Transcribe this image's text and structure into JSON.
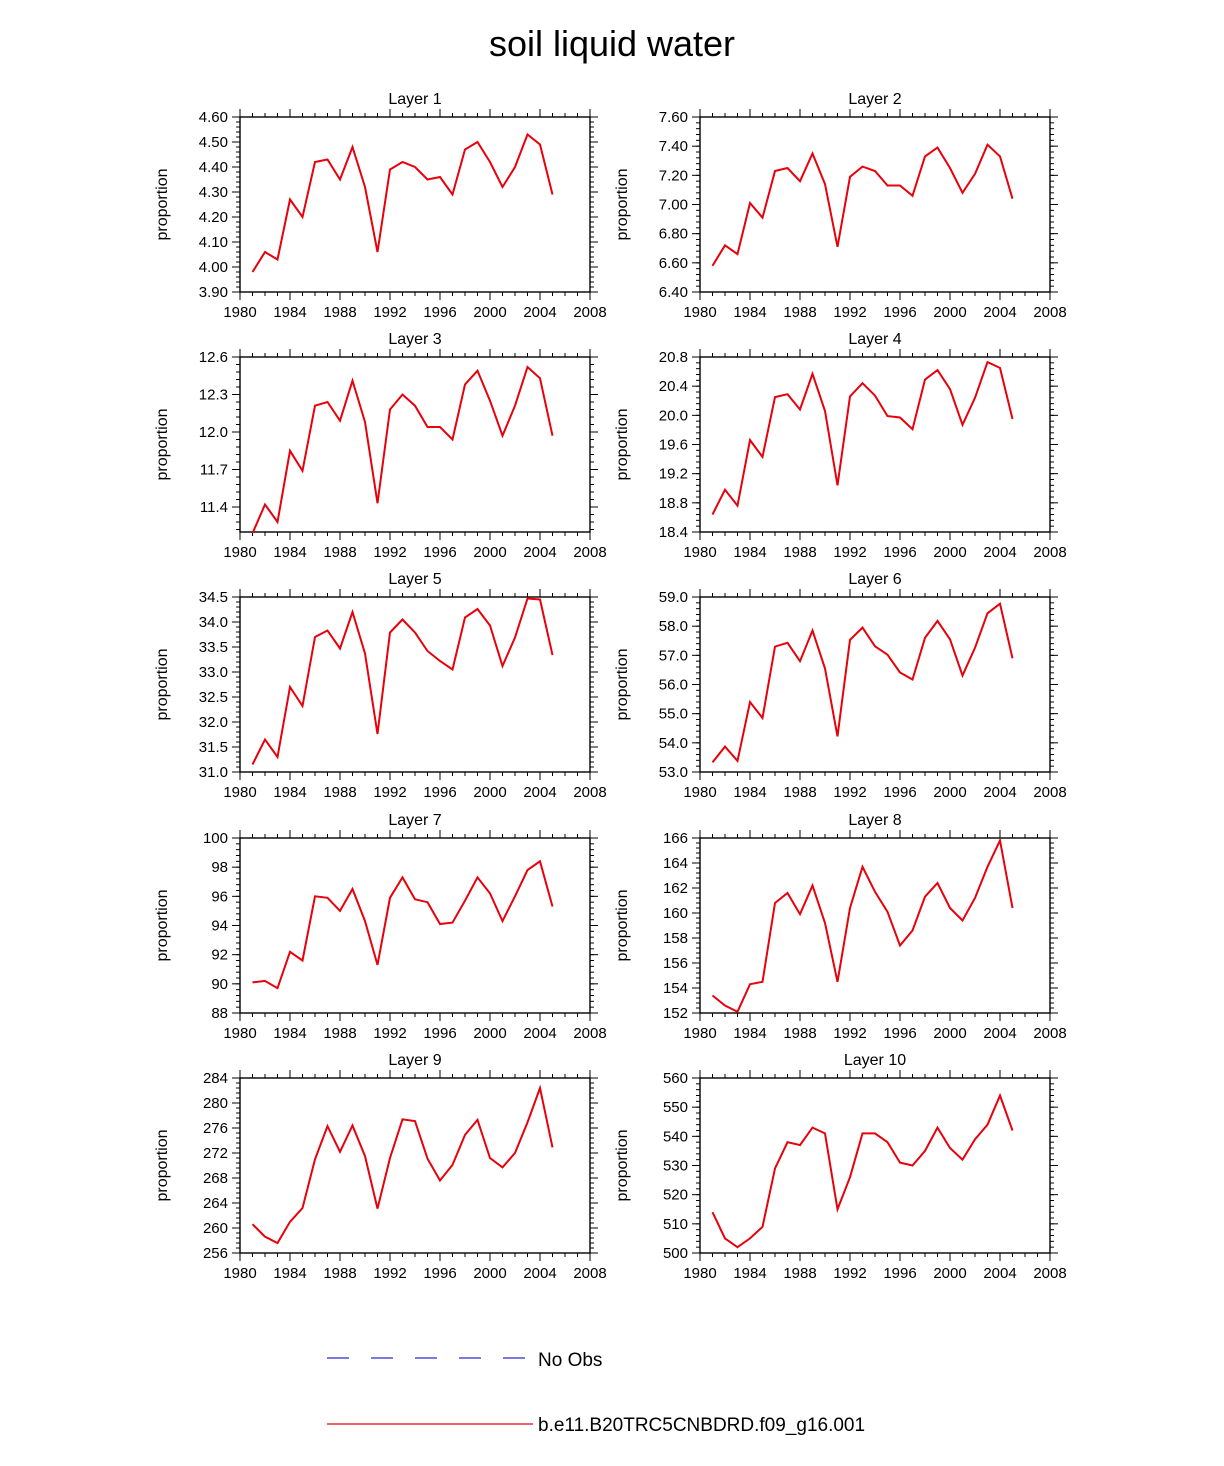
{
  "title": "soil liquid water",
  "colors": {
    "model": "#e8000b",
    "obs": "#2b2bcf",
    "axis": "#000000"
  },
  "legend": [
    {
      "label": "No Obs",
      "style": "dashed",
      "color": "#2b2bcf"
    },
    {
      "label": "b.e11.B20TRC5CNBDRD.f09_g16.001",
      "style": "solid",
      "color": "#e8000b"
    }
  ],
  "chart_data": [
    {
      "type": "line",
      "title": "Layer 1",
      "ylabel": "proportion",
      "xlim": [
        1980,
        2008
      ],
      "xticks": [
        "1980",
        "1984",
        "1988",
        "1992",
        "1996",
        "2000",
        "2004",
        "2008"
      ],
      "ylim": [
        3.9,
        4.6
      ],
      "yticks": [
        "3.90",
        "4.00",
        "4.10",
        "4.20",
        "4.30",
        "4.40",
        "4.50",
        "4.60"
      ],
      "x": [
        1981,
        1982,
        1983,
        1984,
        1985,
        1986,
        1987,
        1988,
        1989,
        1990,
        1991,
        1992,
        1993,
        1994,
        1995,
        1996,
        1997,
        1998,
        1999,
        2000,
        2001,
        2002,
        2003,
        2004,
        2005
      ],
      "series": [
        {
          "values": [
            3.98,
            4.06,
            4.03,
            4.27,
            4.2,
            4.42,
            4.43,
            4.35,
            4.48,
            4.32,
            4.06,
            4.39,
            4.42,
            4.4,
            4.35,
            4.36,
            4.29,
            4.47,
            4.5,
            4.42,
            4.32,
            4.4,
            4.53,
            4.49,
            4.29
          ]
        }
      ]
    },
    {
      "type": "line",
      "title": "Layer 2",
      "ylabel": "proportion",
      "xlim": [
        1980,
        2008
      ],
      "xticks": [
        "1980",
        "1984",
        "1988",
        "1992",
        "1996",
        "2000",
        "2004",
        "2008"
      ],
      "ylim": [
        6.4,
        7.6
      ],
      "yticks": [
        "6.40",
        "6.60",
        "6.80",
        "7.00",
        "7.20",
        "7.40",
        "7.60"
      ],
      "x": [
        1981,
        1982,
        1983,
        1984,
        1985,
        1986,
        1987,
        1988,
        1989,
        1990,
        1991,
        1992,
        1993,
        1994,
        1995,
        1996,
        1997,
        1998,
        1999,
        2000,
        2001,
        2002,
        2003,
        2004,
        2005
      ],
      "series": [
        {
          "values": [
            6.58,
            6.72,
            6.66,
            7.01,
            6.91,
            7.23,
            7.25,
            7.16,
            7.35,
            7.14,
            6.71,
            7.19,
            7.26,
            7.23,
            7.13,
            7.13,
            7.06,
            7.33,
            7.39,
            7.25,
            7.08,
            7.21,
            7.41,
            7.33,
            7.04
          ]
        }
      ]
    },
    {
      "type": "line",
      "title": "Layer 3",
      "ylabel": "proportion",
      "xlim": [
        1980,
        2008
      ],
      "xticks": [
        "1980",
        "1984",
        "1988",
        "1992",
        "1996",
        "2000",
        "2004",
        "2008"
      ],
      "ylim": [
        11.2,
        12.6
      ],
      "yticks": [
        "11.4",
        "11.7",
        "12.0",
        "12.3",
        "12.6"
      ],
      "x": [
        1981,
        1982,
        1983,
        1984,
        1985,
        1986,
        1987,
        1988,
        1989,
        1990,
        1991,
        1992,
        1993,
        1994,
        1995,
        1996,
        1997,
        1998,
        1999,
        2000,
        2001,
        2002,
        2003,
        2004,
        2005
      ],
      "series": [
        {
          "values": [
            11.19,
            11.42,
            11.28,
            11.85,
            11.69,
            12.21,
            12.24,
            12.09,
            12.41,
            12.08,
            11.43,
            12.18,
            12.3,
            12.21,
            12.04,
            12.04,
            11.94,
            12.38,
            12.49,
            12.25,
            11.97,
            12.21,
            12.52,
            12.43,
            11.97
          ]
        }
      ]
    },
    {
      "type": "line",
      "title": "Layer 4",
      "ylabel": "proportion",
      "xlim": [
        1980,
        2008
      ],
      "xticks": [
        "1980",
        "1984",
        "1988",
        "1992",
        "1996",
        "2000",
        "2004",
        "2008"
      ],
      "ylim": [
        18.4,
        20.8
      ],
      "yticks": [
        "18.4",
        "18.8",
        "19.2",
        "19.6",
        "20.0",
        "20.4",
        "20.8"
      ],
      "x": [
        1981,
        1982,
        1983,
        1984,
        1985,
        1986,
        1987,
        1988,
        1989,
        1990,
        1991,
        1992,
        1993,
        1994,
        1995,
        1996,
        1997,
        1998,
        1999,
        2000,
        2001,
        2002,
        2003,
        2004,
        2005
      ],
      "series": [
        {
          "values": [
            18.64,
            18.98,
            18.76,
            19.66,
            19.43,
            20.25,
            20.29,
            20.08,
            20.57,
            20.06,
            19.04,
            20.26,
            20.44,
            20.27,
            19.99,
            19.97,
            19.81,
            20.49,
            20.62,
            20.36,
            19.87,
            20.24,
            20.73,
            20.65,
            19.95
          ]
        }
      ]
    },
    {
      "type": "line",
      "title": "Layer 5",
      "ylabel": "proportion",
      "xlim": [
        1980,
        2008
      ],
      "xticks": [
        "1980",
        "1984",
        "1988",
        "1992",
        "1996",
        "2000",
        "2004",
        "2008"
      ],
      "ylim": [
        31.0,
        34.5
      ],
      "yticks": [
        "31.0",
        "31.5",
        "32.0",
        "32.5",
        "33.0",
        "33.5",
        "34.0",
        "34.5"
      ],
      "x": [
        1981,
        1982,
        1983,
        1984,
        1985,
        1986,
        1987,
        1988,
        1989,
        1990,
        1991,
        1992,
        1993,
        1994,
        1995,
        1996,
        1997,
        1998,
        1999,
        2000,
        2001,
        2002,
        2003,
        2004,
        2005
      ],
      "series": [
        {
          "values": [
            31.15,
            31.65,
            31.3,
            32.7,
            32.32,
            33.7,
            33.83,
            33.47,
            34.2,
            33.37,
            31.76,
            33.79,
            34.05,
            33.79,
            33.42,
            33.22,
            33.05,
            34.09,
            34.26,
            33.93,
            33.12,
            33.69,
            34.47,
            34.45,
            33.34
          ]
        }
      ]
    },
    {
      "type": "line",
      "title": "Layer 6",
      "ylabel": "proportion",
      "xlim": [
        1980,
        2008
      ],
      "xticks": [
        "1980",
        "1984",
        "1988",
        "1992",
        "1996",
        "2000",
        "2004",
        "2008"
      ],
      "ylim": [
        53.0,
        59.0
      ],
      "yticks": [
        "53.0",
        "54.0",
        "55.0",
        "56.0",
        "57.0",
        "58.0",
        "59.0"
      ],
      "x": [
        1981,
        1982,
        1983,
        1984,
        1985,
        1986,
        1987,
        1988,
        1989,
        1990,
        1991,
        1992,
        1993,
        1994,
        1995,
        1996,
        1997,
        1998,
        1999,
        2000,
        2001,
        2002,
        2003,
        2004,
        2005
      ],
      "series": [
        {
          "values": [
            53.33,
            53.87,
            53.38,
            55.4,
            54.85,
            57.3,
            57.43,
            56.8,
            57.85,
            56.55,
            54.22,
            57.53,
            57.95,
            57.31,
            57.02,
            56.41,
            56.17,
            57.6,
            58.18,
            57.55,
            56.31,
            57.26,
            58.44,
            58.77,
            56.9
          ]
        }
      ]
    },
    {
      "type": "line",
      "title": "Layer 7",
      "ylabel": "proportion",
      "xlim": [
        1980,
        2008
      ],
      "xticks": [
        "1980",
        "1984",
        "1988",
        "1992",
        "1996",
        "2000",
        "2004",
        "2008"
      ],
      "ylim": [
        88,
        100
      ],
      "yticks": [
        "88",
        "90",
        "92",
        "94",
        "96",
        "98",
        "100"
      ],
      "x": [
        1981,
        1982,
        1983,
        1984,
        1985,
        1986,
        1987,
        1988,
        1989,
        1990,
        1991,
        1992,
        1993,
        1994,
        1995,
        1996,
        1997,
        1998,
        1999,
        2000,
        2001,
        2002,
        2003,
        2004,
        2005
      ],
      "series": [
        {
          "values": [
            90.1,
            90.2,
            89.7,
            92.2,
            91.6,
            96.0,
            95.9,
            95.0,
            96.5,
            94.3,
            91.3,
            95.9,
            97.3,
            95.8,
            95.6,
            94.1,
            94.2,
            95.7,
            97.3,
            96.2,
            94.3,
            96.0,
            97.8,
            98.4,
            95.3
          ]
        }
      ]
    },
    {
      "type": "line",
      "title": "Layer 8",
      "ylabel": "proportion",
      "xlim": [
        1980,
        2008
      ],
      "xticks": [
        "1980",
        "1984",
        "1988",
        "1992",
        "1996",
        "2000",
        "2004",
        "2008"
      ],
      "ylim": [
        152,
        166
      ],
      "yticks": [
        "152",
        "154",
        "156",
        "158",
        "160",
        "162",
        "164",
        "166"
      ],
      "x": [
        1981,
        1982,
        1983,
        1984,
        1985,
        1986,
        1987,
        1988,
        1989,
        1990,
        1991,
        1992,
        1993,
        1994,
        1995,
        1996,
        1997,
        1998,
        1999,
        2000,
        2001,
        2002,
        2003,
        2004,
        2005
      ],
      "series": [
        {
          "values": [
            153.4,
            152.6,
            152.1,
            154.3,
            154.5,
            160.8,
            161.6,
            159.9,
            162.2,
            159.2,
            154.5,
            160.4,
            163.7,
            161.7,
            160.1,
            157.4,
            158.6,
            161.3,
            162.4,
            160.4,
            159.4,
            161.2,
            163.7,
            165.8,
            160.4
          ]
        }
      ]
    },
    {
      "type": "line",
      "title": "Layer 9",
      "ylabel": "proportion",
      "xlim": [
        1980,
        2008
      ],
      "xticks": [
        "1980",
        "1984",
        "1988",
        "1992",
        "1996",
        "2000",
        "2004",
        "2008"
      ],
      "ylim": [
        256,
        284
      ],
      "yticks": [
        "256",
        "260",
        "264",
        "268",
        "272",
        "276",
        "280",
        "284"
      ],
      "x": [
        1981,
        1982,
        1983,
        1984,
        1985,
        1986,
        1987,
        1988,
        1989,
        1990,
        1991,
        1992,
        1993,
        1994,
        1995,
        1996,
        1997,
        1998,
        1999,
        2000,
        2001,
        2002,
        2003,
        2004,
        2005
      ],
      "series": [
        {
          "values": [
            260.6,
            258.6,
            257.6,
            261.0,
            263.2,
            271.0,
            276.3,
            272.2,
            276.4,
            271.5,
            263.1,
            271.2,
            277.4,
            277.1,
            271.1,
            267.6,
            270.1,
            274.9,
            277.3,
            271.2,
            269.7,
            272.0,
            276.9,
            282.4,
            272.9
          ]
        }
      ]
    },
    {
      "type": "line",
      "title": "Layer 10",
      "ylabel": "proportion",
      "xlim": [
        1980,
        2008
      ],
      "xticks": [
        "1980",
        "1984",
        "1988",
        "1992",
        "1996",
        "2000",
        "2004",
        "2008"
      ],
      "ylim": [
        500,
        560
      ],
      "yticks": [
        "500",
        "510",
        "520",
        "530",
        "540",
        "550",
        "560"
      ],
      "x": [
        1981,
        1982,
        1983,
        1984,
        1985,
        1986,
        1987,
        1988,
        1989,
        1990,
        1991,
        1992,
        1993,
        1994,
        1995,
        1996,
        1997,
        1998,
        1999,
        2000,
        2001,
        2002,
        2003,
        2004,
        2005
      ],
      "series": [
        {
          "values": [
            514,
            505,
            502,
            505,
            509,
            529,
            538,
            537,
            543,
            541,
            515,
            526,
            541,
            541,
            538,
            531,
            530,
            535,
            543,
            536,
            532,
            539,
            544,
            554,
            542
          ]
        }
      ]
    }
  ]
}
